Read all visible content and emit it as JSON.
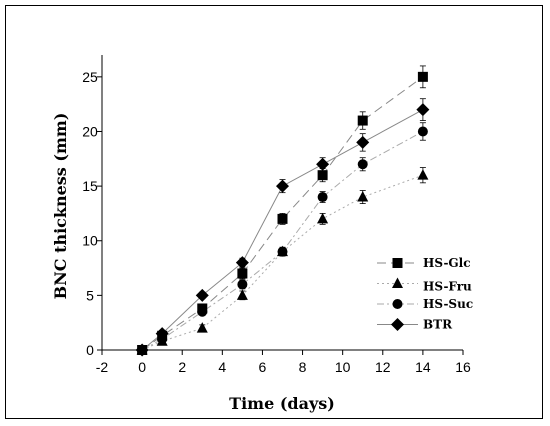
{
  "chart_data": {
    "type": "line",
    "xlabel": "Time (days)",
    "ylabel": "BNC thickness (mm)",
    "xlim": [
      -2,
      16
    ],
    "ylim": [
      0,
      27
    ],
    "xticks": [
      -2,
      0,
      2,
      4,
      6,
      8,
      10,
      12,
      14,
      16
    ],
    "yticks": [
      0,
      5,
      10,
      15,
      20,
      25
    ],
    "grid": false,
    "legend_position": "bottom-right",
    "x": [
      0,
      1,
      3,
      5,
      7,
      9,
      11,
      14
    ],
    "series": [
      {
        "name": "HS-Glc",
        "marker": "square",
        "line_style": "long-dash",
        "line_color": "#888888",
        "values": [
          0,
          1.3,
          3.8,
          7.0,
          12.0,
          16.0,
          21.0,
          25.0
        ],
        "errors": [
          0.3,
          0.3,
          0.3,
          0.5,
          0.5,
          0.6,
          0.8,
          1.0
        ]
      },
      {
        "name": "HS-Fru",
        "marker": "triangle",
        "line_style": "dotted",
        "line_color": "#aaaaaa",
        "values": [
          0,
          0.8,
          2.0,
          5.0,
          9.0,
          12.0,
          14.0,
          16.0
        ],
        "errors": [
          0.2,
          0.3,
          0.3,
          0.4,
          0.4,
          0.5,
          0.6,
          0.7
        ]
      },
      {
        "name": "HS-Suc",
        "marker": "circle",
        "line_style": "dash-dot",
        "line_color": "#aaaaaa",
        "values": [
          0,
          1.0,
          3.5,
          6.0,
          9.0,
          14.0,
          17.0,
          20.0
        ],
        "errors": [
          0.2,
          0.3,
          0.3,
          0.4,
          0.4,
          0.5,
          0.6,
          0.8
        ]
      },
      {
        "name": "BTR",
        "marker": "diamond",
        "line_style": "solid",
        "line_color": "#888888",
        "values": [
          0,
          1.5,
          5.0,
          8.0,
          15.0,
          17.0,
          19.0,
          22.0
        ],
        "errors": [
          0.2,
          0.3,
          0.3,
          0.4,
          0.6,
          0.6,
          0.8,
          1.0
        ]
      }
    ]
  }
}
